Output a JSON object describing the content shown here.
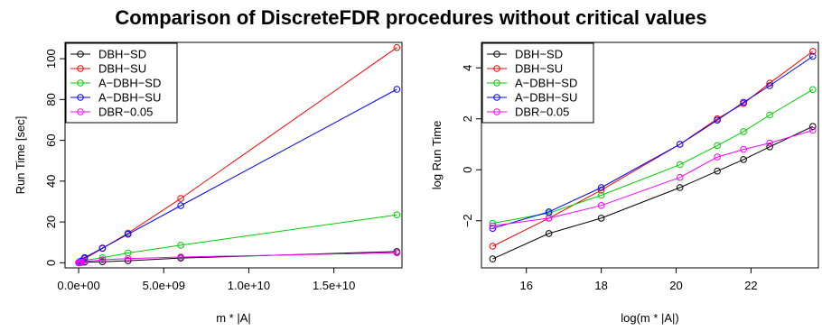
{
  "figure": {
    "title": "Comparison of DiscreteFDR procedures without critical values"
  },
  "chart_data": [
    {
      "type": "line",
      "xlabel": "m * |A|",
      "ylabel": "Run Time [sec]",
      "xlim": [
        -800000000.0,
        19000000000.0
      ],
      "ylim": [
        -2.5,
        108
      ],
      "xticks": [
        0,
        5000000000.0,
        10000000000.0,
        15000000000.0
      ],
      "xtick_labels": [
        "0.0e+00",
        "5.0e+09",
        "1.0e+10",
        "1.5e+10"
      ],
      "yticks": [
        0,
        20,
        40,
        60,
        80,
        100
      ],
      "ytick_labels": [
        "0",
        "20",
        "40",
        "60",
        "80",
        "100"
      ],
      "legend": "top-left",
      "grid": false,
      "x": [
        3600000.0,
        16000000.0,
        65000000.0,
        150000000.0,
        350000000.0,
        1400000000.0,
        2900000000.0,
        6000000000.0,
        18700000000.0
      ],
      "series": [
        {
          "name": "DBH−SD",
          "color": "#000000",
          "values": [
            0.03,
            0.08,
            0.15,
            0.2,
            0.3,
            0.5,
            1.0,
            2.3,
            5.5
          ]
        },
        {
          "name": "DBH−SU",
          "color": "#ff0000",
          "values": [
            0.05,
            0.2,
            0.4,
            0.8,
            2.0,
            7.0,
            14.5,
            31.5,
            105.5
          ]
        },
        {
          "name": "A−DBH−SD",
          "color": "#00cd00",
          "values": [
            0.12,
            0.2,
            0.35,
            0.6,
            1.2,
            2.5,
            4.8,
            8.6,
            23.5
          ]
        },
        {
          "name": "A−DBH−SU",
          "color": "#0000ff",
          "values": [
            0.1,
            0.2,
            0.5,
            0.9,
            2.5,
            7.2,
            14.0,
            28.0,
            85.0
          ]
        },
        {
          "name": "DBR−0.05",
          "color": "#ff00ff",
          "values": [
            0.1,
            0.15,
            0.25,
            0.4,
            0.6,
            1.5,
            2.0,
            2.8,
            4.9
          ]
        }
      ]
    },
    {
      "type": "line",
      "xlabel": "log(m * |A|)",
      "ylabel": "log Run Time",
      "xlim": [
        14.8,
        23.8
      ],
      "ylim": [
        -3.85,
        5.0
      ],
      "xticks": [
        16,
        18,
        20,
        22
      ],
      "xtick_labels": [
        "16",
        "18",
        "20",
        "22"
      ],
      "yticks": [
        -2,
        0,
        2,
        4
      ],
      "ytick_labels": [
        "−2",
        "0",
        "2",
        "4"
      ],
      "legend": "top-left",
      "grid": false,
      "x": [
        15.1,
        16.6,
        18.0,
        20.1,
        21.1,
        21.8,
        22.5,
        23.65
      ],
      "series": [
        {
          "name": "DBH−SD",
          "color": "#000000",
          "values": [
            -3.5,
            -2.5,
            -1.9,
            -0.7,
            -0.05,
            0.4,
            0.9,
            1.7
          ]
        },
        {
          "name": "DBH−SU",
          "color": "#ff0000",
          "values": [
            -3.0,
            -1.9,
            -0.8,
            1.0,
            2.0,
            2.6,
            3.4,
            4.65
          ]
        },
        {
          "name": "A−DBH−SD",
          "color": "#00cd00",
          "values": [
            -2.1,
            -1.7,
            -1.0,
            0.2,
            0.95,
            1.5,
            2.15,
            3.15
          ]
        },
        {
          "name": "A−DBH−SU",
          "color": "#0000ff",
          "values": [
            -2.3,
            -1.65,
            -0.7,
            1.0,
            1.95,
            2.65,
            3.3,
            4.45
          ]
        },
        {
          "name": "DBR−0.05",
          "color": "#ff00ff",
          "values": [
            -2.2,
            -1.9,
            -1.4,
            -0.3,
            0.5,
            0.8,
            1.05,
            1.55
          ]
        }
      ]
    }
  ]
}
